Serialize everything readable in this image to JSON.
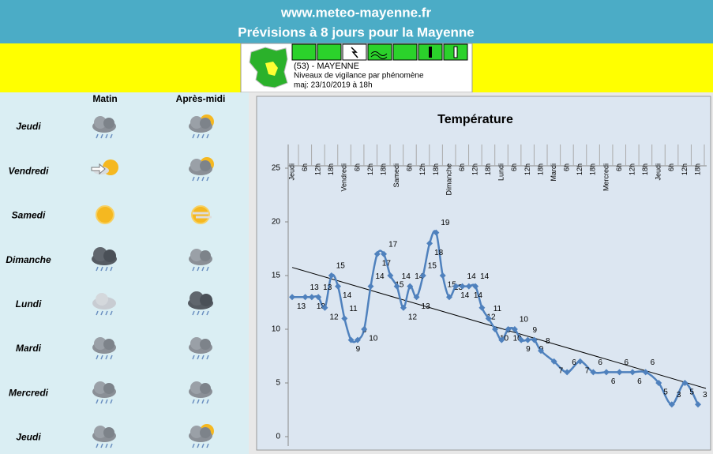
{
  "header": {
    "site": "www.meteo-mayenne.fr",
    "title": "Prévisions à 8 jours pour la Mayenne"
  },
  "vigilance": {
    "department": "(53) - MAYENNE",
    "subtitle": "Niveaux de vigilance par phénomène",
    "updated": "maj: 23/10/2019 à 18h"
  },
  "forecast": {
    "columns": [
      "Matin",
      "Après-midi"
    ],
    "days": [
      "Jeudi",
      "Vendredi",
      "Samedi",
      "Dimanche",
      "Lundi",
      "Mardi",
      "Mercredi",
      "Jeudi"
    ]
  },
  "chart_data": {
    "type": "line",
    "title": "Température",
    "color": "#4f81bd",
    "x": [
      0,
      1,
      1.5,
      2,
      2.5,
      3,
      3.5,
      4,
      4.5,
      5,
      5.5,
      6,
      6.5,
      7,
      7.5,
      8,
      8.5,
      9,
      9.5,
      10,
      10.5,
      11,
      11.5,
      12,
      12.5,
      13,
      13.5,
      14,
      14.5,
      15,
      15.5,
      16,
      16.5,
      17,
      17.5,
      18,
      18.5,
      19,
      20,
      21,
      22,
      23,
      24,
      25,
      26,
      27,
      28,
      29,
      30,
      31
    ],
    "values": [
      13,
      13,
      13,
      13,
      12,
      15,
      14,
      11,
      9,
      9,
      10,
      14,
      17,
      17,
      15,
      14,
      12,
      14,
      13,
      15,
      18,
      19,
      15,
      13,
      14,
      14,
      14,
      14,
      12,
      11,
      10,
      9,
      10,
      10,
      9,
      9,
      9,
      8,
      7,
      6,
      7,
      6,
      6,
      6,
      6,
      6,
      5,
      3,
      5,
      3
    ],
    "xlim": [
      0,
      31
    ],
    "ylim": [
      0,
      25
    ],
    "yticks": [
      0,
      5,
      10,
      15,
      20,
      25
    ],
    "xticks": [
      {
        "value": 0,
        "label": "Jeudi"
      },
      {
        "value": 1,
        "label": "6h"
      },
      {
        "value": 2,
        "label": "12h"
      },
      {
        "value": 3,
        "label": "18h"
      },
      {
        "value": 4,
        "label": "Vendredi"
      },
      {
        "value": 5,
        "label": "6h"
      },
      {
        "value": 6,
        "label": "12h"
      },
      {
        "value": 7,
        "label": "18h"
      },
      {
        "value": 8,
        "label": "Samedi"
      },
      {
        "value": 9,
        "label": "6h"
      },
      {
        "value": 10,
        "label": "12h"
      },
      {
        "value": 11,
        "label": "18h"
      },
      {
        "value": 12,
        "label": "Dimanche"
      },
      {
        "value": 13,
        "label": "6h"
      },
      {
        "value": 14,
        "label": "12h"
      },
      {
        "value": 15,
        "label": "18h"
      },
      {
        "value": 16,
        "label": "Lundi"
      },
      {
        "value": 17,
        "label": "6h"
      },
      {
        "value": 18,
        "label": "12h"
      },
      {
        "value": 19,
        "label": "18h"
      },
      {
        "value": 20,
        "label": "Mardi"
      },
      {
        "value": 21,
        "label": "6h"
      },
      {
        "value": 22,
        "label": "12h"
      },
      {
        "value": 23,
        "label": "18h"
      },
      {
        "value": 24,
        "label": "Mercredi"
      },
      {
        "value": 25,
        "label": "6h"
      },
      {
        "value": 26,
        "label": "12h"
      },
      {
        "value": 27,
        "label": "18h"
      },
      {
        "value": 28,
        "label": "Jeudi"
      },
      {
        "value": 29,
        "label": "6h"
      },
      {
        "value": 30,
        "label": "12h"
      },
      {
        "value": 31,
        "label": "18h"
      }
    ],
    "trendline": true
  }
}
